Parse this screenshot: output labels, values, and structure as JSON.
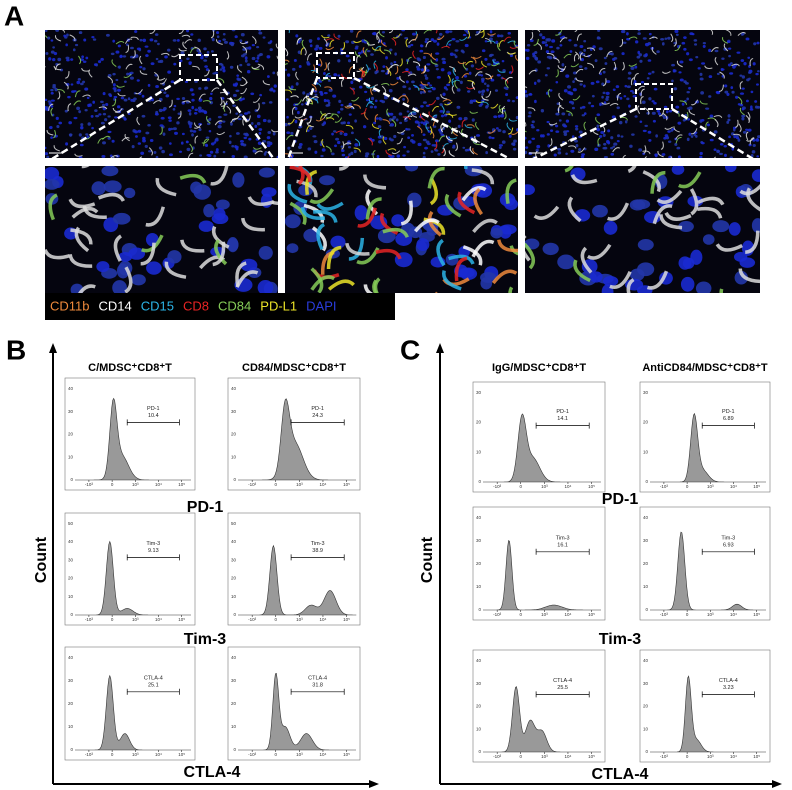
{
  "panel_a": {
    "label": "A",
    "legend": [
      {
        "text": "CD11b",
        "color": "#ee8a3c"
      },
      {
        "text": "CD14",
        "color": "#ffffff"
      },
      {
        "text": "CD15",
        "color": "#2cb4e6"
      },
      {
        "text": "CD8",
        "color": "#e82424"
      },
      {
        "text": "CD84",
        "color": "#86cc58"
      },
      {
        "text": "PD-L1",
        "color": "#ece428"
      },
      {
        "text": "DAPI",
        "color": "#2a3cdc"
      }
    ]
  },
  "panel_b": {
    "label": "B",
    "y_label": "Count",
    "columns": [
      "C/MDSC⁺CD8⁺T",
      "CD84/MDSC⁺CD8⁺T"
    ],
    "x_ticks": [
      "-10³",
      "0",
      "10³",
      "10⁴",
      "10⁵"
    ],
    "rows": [
      {
        "marker": "PD-1",
        "y_ticks": [
          "0",
          "10",
          "20",
          "30",
          "40"
        ],
        "gates": [
          {
            "name": "PD-1",
            "value": "10.4"
          },
          {
            "name": "PD-1",
            "value": "24.3"
          }
        ]
      },
      {
        "marker": "Tim-3",
        "y_ticks": [
          "0",
          "10",
          "20",
          "30",
          "40",
          "50"
        ],
        "gates": [
          {
            "name": "Tim-3",
            "value": "9.13"
          },
          {
            "name": "Tim-3",
            "value": "38.9"
          }
        ]
      },
      {
        "marker": "CTLA-4",
        "y_ticks": [
          "0",
          "10",
          "20",
          "30",
          "40"
        ],
        "gates": [
          {
            "name": "CTLA-4",
            "value": "25.1"
          },
          {
            "name": "CTLA-4",
            "value": "31.8"
          }
        ]
      }
    ]
  },
  "panel_c": {
    "label": "C",
    "y_label": "Count",
    "columns": [
      "IgG/MDSC⁺CD8⁺T",
      "AntiCD84/MDSC⁺CD8⁺T"
    ],
    "x_ticks": [
      "-10³",
      "0",
      "10³",
      "10⁴",
      "10⁵"
    ],
    "rows": [
      {
        "marker": "PD-1",
        "y_ticks": [
          "0",
          "10",
          "20",
          "30"
        ],
        "gates": [
          {
            "name": "PD-1",
            "value": "14.1"
          },
          {
            "name": "PD-1",
            "value": "6.89"
          }
        ]
      },
      {
        "marker": "Tim-3",
        "y_ticks": [
          "0",
          "10",
          "20",
          "30",
          "40"
        ],
        "gates": [
          {
            "name": "Tim-3",
            "value": "16.1"
          },
          {
            "name": "Tim-3",
            "value": "6.93"
          }
        ]
      },
      {
        "marker": "CTLA-4",
        "y_ticks": [
          "0",
          "10",
          "20",
          "30",
          "40"
        ],
        "gates": [
          {
            "name": "CTLA-4",
            "value": "25.5"
          },
          {
            "name": "CTLA-4",
            "value": "3.23"
          }
        ]
      }
    ]
  }
}
